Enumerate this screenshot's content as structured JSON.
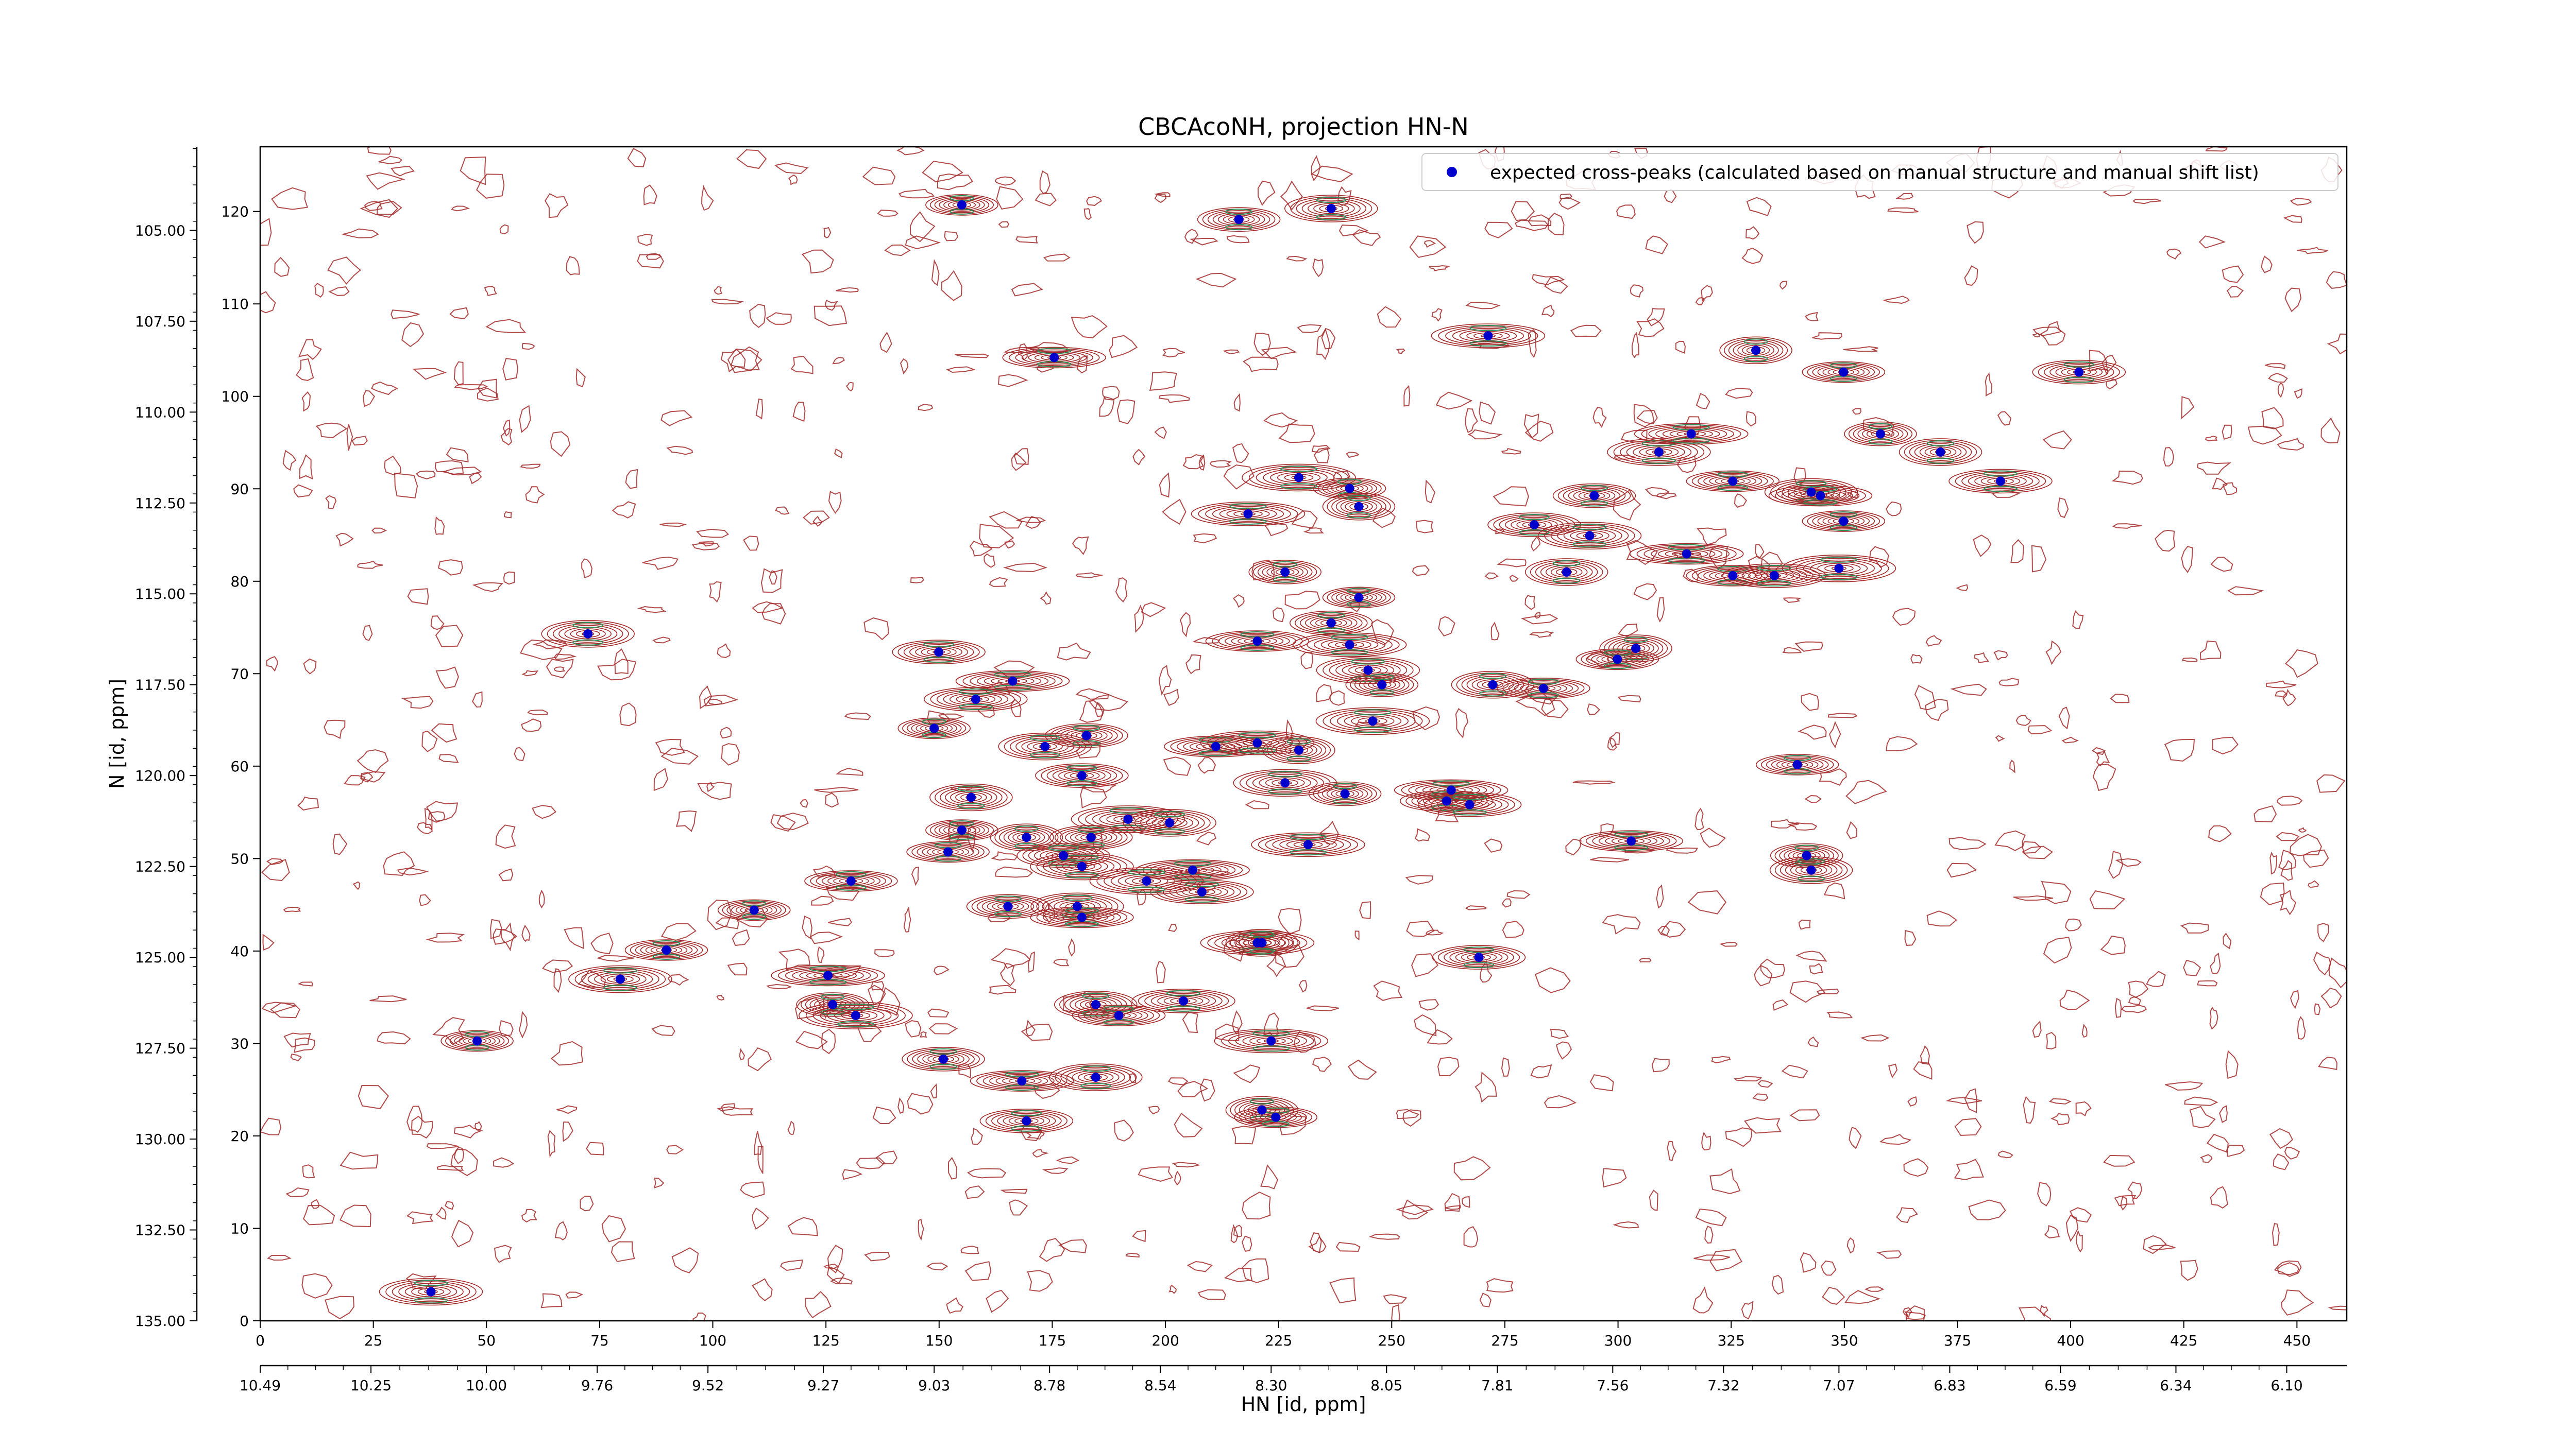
{
  "chart_data": {
    "type": "scatter",
    "title": "CBCAcoNH, projection HN-N",
    "xlabel": "HN [id, ppm]",
    "ylabel": "N [id, ppm]",
    "x_index_range": [
      0,
      461
    ],
    "y_index_range": [
      0,
      127
    ],
    "x_ppm_range": [
      10.49,
      5.97
    ],
    "y_ppm_range": [
      135.0,
      102.7
    ],
    "x_index_ticks": [
      "0",
      "25",
      "50",
      "75",
      "100",
      "125",
      "150",
      "175",
      "200",
      "225",
      "250",
      "275",
      "300",
      "325",
      "350",
      "375",
      "400",
      "425",
      "450"
    ],
    "x_ppm_ticks": [
      "10.49",
      "10.25",
      "10.00",
      "9.76",
      "9.52",
      "9.27",
      "9.03",
      "8.78",
      "8.54",
      "8.30",
      "8.05",
      "7.81",
      "7.56",
      "7.32",
      "7.07",
      "6.83",
      "6.59",
      "6.34",
      "6.10"
    ],
    "y_index_ticks": [
      "0",
      "10",
      "20",
      "30",
      "40",
      "50",
      "60",
      "70",
      "80",
      "90",
      "100",
      "110",
      "120"
    ],
    "y_ppm_ticks": [
      "135.00",
      "132.50",
      "130.00",
      "127.50",
      "125.00",
      "122.50",
      "120.00",
      "117.50",
      "115.00",
      "112.50",
      "110.00",
      "107.50",
      "105.00"
    ],
    "grid": false,
    "legend": {
      "position": "top-right",
      "label": "expected cross-peaks (calculated based on manual structure and manual shift list)"
    },
    "series": [
      {
        "name": "expected cross-peaks (calculated based on manual structure and manual shift list)",
        "color": "#0000cc",
        "marker": "circle",
        "points": [
          {
            "x": 8.97,
            "y": 104.3
          },
          {
            "x": 8.37,
            "y": 104.7
          },
          {
            "x": 8.17,
            "y": 104.4
          },
          {
            "x": 8.77,
            "y": 108.5
          },
          {
            "x": 7.83,
            "y": 107.9
          },
          {
            "x": 7.25,
            "y": 108.3
          },
          {
            "x": 7.06,
            "y": 108.9
          },
          {
            "x": 6.55,
            "y": 108.9
          },
          {
            "x": 7.46,
            "y": 111.1
          },
          {
            "x": 7.39,
            "y": 110.6
          },
          {
            "x": 6.98,
            "y": 110.6
          },
          {
            "x": 6.85,
            "y": 111.1
          },
          {
            "x": 7.3,
            "y": 111.9
          },
          {
            "x": 6.72,
            "y": 111.9
          },
          {
            "x": 8.24,
            "y": 111.8
          },
          {
            "x": 8.13,
            "y": 112.1
          },
          {
            "x": 7.6,
            "y": 112.3
          },
          {
            "x": 7.13,
            "y": 112.2
          },
          {
            "x": 7.11,
            "y": 112.3
          },
          {
            "x": 8.35,
            "y": 112.8
          },
          {
            "x": 8.11,
            "y": 112.6
          },
          {
            "x": 7.06,
            "y": 113.0
          },
          {
            "x": 7.73,
            "y": 113.1
          },
          {
            "x": 7.61,
            "y": 113.4
          },
          {
            "x": 7.4,
            "y": 113.9
          },
          {
            "x": 8.27,
            "y": 114.4
          },
          {
            "x": 7.66,
            "y": 114.4
          },
          {
            "x": 7.3,
            "y": 114.5
          },
          {
            "x": 7.21,
            "y": 114.5
          },
          {
            "x": 7.07,
            "y": 114.3
          },
          {
            "x": 8.11,
            "y": 115.1
          },
          {
            "x": 8.17,
            "y": 115.8
          },
          {
            "x": 9.78,
            "y": 116.1
          },
          {
            "x": 8.33,
            "y": 116.3
          },
          {
            "x": 8.13,
            "y": 116.4
          },
          {
            "x": 7.51,
            "y": 116.5
          },
          {
            "x": 7.55,
            "y": 116.8
          },
          {
            "x": 9.02,
            "y": 116.6
          },
          {
            "x": 8.09,
            "y": 117.1
          },
          {
            "x": 8.86,
            "y": 117.4
          },
          {
            "x": 8.06,
            "y": 117.5
          },
          {
            "x": 7.82,
            "y": 117.5
          },
          {
            "x": 7.71,
            "y": 117.6
          },
          {
            "x": 8.94,
            "y": 117.9
          },
          {
            "x": 8.08,
            "y": 118.5
          },
          {
            "x": 9.03,
            "y": 118.7
          },
          {
            "x": 8.7,
            "y": 118.9
          },
          {
            "x": 8.79,
            "y": 119.2
          },
          {
            "x": 8.42,
            "y": 119.2
          },
          {
            "x": 8.33,
            "y": 119.1
          },
          {
            "x": 8.24,
            "y": 119.3
          },
          {
            "x": 7.16,
            "y": 119.7
          },
          {
            "x": 8.71,
            "y": 120.0
          },
          {
            "x": 8.27,
            "y": 120.2
          },
          {
            "x": 7.91,
            "y": 120.4
          },
          {
            "x": 8.14,
            "y": 120.5
          },
          {
            "x": 8.95,
            "y": 120.6
          },
          {
            "x": 7.92,
            "y": 120.7
          },
          {
            "x": 7.87,
            "y": 120.8
          },
          {
            "x": 8.61,
            "y": 121.2
          },
          {
            "x": 8.97,
            "y": 121.5
          },
          {
            "x": 8.69,
            "y": 121.7
          },
          {
            "x": 8.52,
            "y": 121.3
          },
          {
            "x": 7.52,
            "y": 121.8
          },
          {
            "x": 8.22,
            "y": 121.9
          },
          {
            "x": 8.83,
            "y": 121.7
          },
          {
            "x": 9.0,
            "y": 122.1
          },
          {
            "x": 8.75,
            "y": 122.2
          },
          {
            "x": 8.71,
            "y": 122.5
          },
          {
            "x": 8.47,
            "y": 122.6
          },
          {
            "x": 7.14,
            "y": 122.2
          },
          {
            "x": 7.13,
            "y": 122.6
          },
          {
            "x": 9.21,
            "y": 122.9
          },
          {
            "x": 8.45,
            "y": 123.2
          },
          {
            "x": 8.57,
            "y": 122.9
          },
          {
            "x": 9.42,
            "y": 123.7
          },
          {
            "x": 8.87,
            "y": 123.6
          },
          {
            "x": 8.72,
            "y": 123.6
          },
          {
            "x": 8.71,
            "y": 123.9
          },
          {
            "x": 8.33,
            "y": 124.6
          },
          {
            "x": 8.32,
            "y": 124.6
          },
          {
            "x": 9.61,
            "y": 124.8
          },
          {
            "x": 7.85,
            "y": 125.0
          },
          {
            "x": 9.71,
            "y": 125.6
          },
          {
            "x": 9.26,
            "y": 125.5
          },
          {
            "x": 9.25,
            "y": 126.3
          },
          {
            "x": 8.68,
            "y": 126.3
          },
          {
            "x": 8.63,
            "y": 126.6
          },
          {
            "x": 8.49,
            "y": 126.2
          },
          {
            "x": 9.2,
            "y": 126.6
          },
          {
            "x": 10.02,
            "y": 127.3
          },
          {
            "x": 9.01,
            "y": 127.8
          },
          {
            "x": 8.68,
            "y": 128.3
          },
          {
            "x": 8.84,
            "y": 128.4
          },
          {
            "x": 8.3,
            "y": 127.3
          },
          {
            "x": 8.32,
            "y": 129.2
          },
          {
            "x": 8.29,
            "y": 129.4
          },
          {
            "x": 8.83,
            "y": 129.5
          },
          {
            "x": 10.12,
            "y": 134.2
          }
        ]
      }
    ]
  }
}
